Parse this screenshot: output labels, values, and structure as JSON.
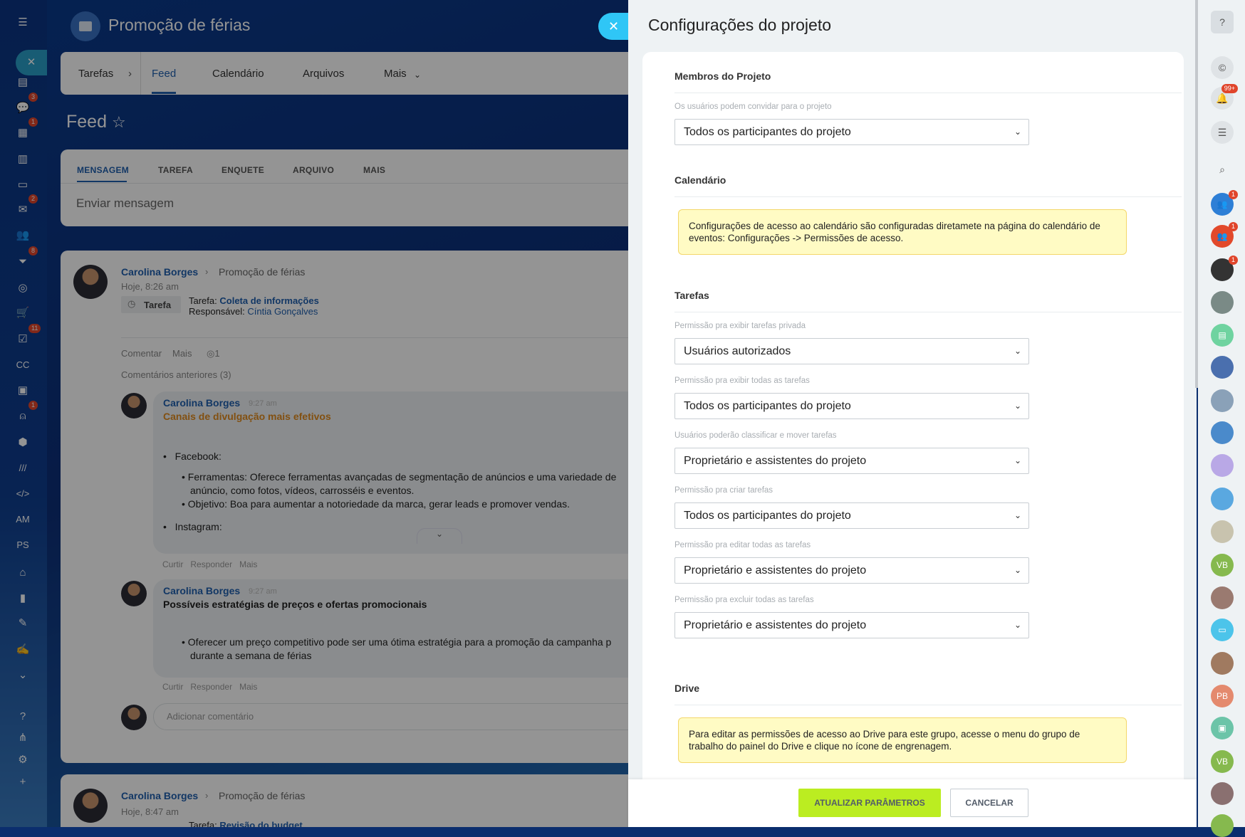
{
  "header": {
    "title": "Promoção de férias"
  },
  "tabs": [
    {
      "label": "Tarefas"
    },
    {
      "label": "Feed"
    },
    {
      "label": "Calendário"
    },
    {
      "label": "Arquivos"
    },
    {
      "label": "Mais"
    }
  ],
  "feed": {
    "title": "Feed"
  },
  "composer": {
    "tabs": [
      "MENSAGEM",
      "TAREFA",
      "ENQUETE",
      "ARQUIVO",
      "MAIS"
    ],
    "placeholder": "Enviar mensagem"
  },
  "post": {
    "author": "Carolina Borges",
    "group": "Promoção de férias",
    "time": "Hoje, 8:26 am",
    "type": "Tarefa",
    "task_label": "Tarefa:",
    "task": "Coleta de informações",
    "resp_label": "Responsável:",
    "resp": "Cíntia Gonçalves",
    "actions": [
      "Comentar",
      "Mais"
    ],
    "views": "1",
    "prev_comments": "Comentários anteriores (3)"
  },
  "comments": [
    {
      "author": "Carolina Borges",
      "time": "9:27 am",
      "title": "Canais de divulgação mais efetivos",
      "l1": "Facebook:",
      "l2": "Ferramentas: Oferece ferramentas avançadas de segmentação de anúncios e uma variedade de",
      "l2b": "anúncio, como fotos, vídeos, carrosséis e eventos.",
      "l3": "Objetivo: Boa para aumentar a notoriedade da marca, gerar leads e promover vendas.",
      "l4": "Instagram:"
    },
    {
      "author": "Carolina Borges",
      "time": "9:27 am",
      "title": "Possíveis estratégias de preços e ofertas promocionais",
      "l1": "Oferecer um preço competitivo pode ser uma ótima estratégia para a promoção da campanha p",
      "l1b": "durante a semana de férias"
    }
  ],
  "comment_actions": [
    "Curtir",
    "Responder",
    "Mais"
  ],
  "add_comment": "Adicionar comentário",
  "post2": {
    "author": "Carolina Borges",
    "group": "Promoção de férias",
    "time": "Hoje, 8:47 am",
    "task_label": "Tarefa:",
    "task": "Revisão do budget"
  },
  "left_sidebar": [
    {
      "icon": "menu-icon",
      "g": "☰"
    },
    {
      "icon": "close-icon",
      "g": "✕"
    },
    {
      "icon": "news-icon",
      "g": "▤"
    },
    {
      "icon": "chat-icon",
      "g": "💬",
      "badge": "3"
    },
    {
      "icon": "calendar-icon",
      "g": "▦",
      "badge": "1"
    },
    {
      "icon": "document-icon",
      "g": "▥"
    },
    {
      "icon": "drive-icon",
      "g": "▭"
    },
    {
      "icon": "mail-icon",
      "g": "✉",
      "badge": "2"
    },
    {
      "icon": "groups-icon",
      "g": "👥"
    },
    {
      "icon": "funnel-icon",
      "g": "⏷",
      "badge": "8"
    },
    {
      "icon": "target-icon",
      "g": "◎"
    },
    {
      "icon": "cart-icon",
      "g": "🛒"
    },
    {
      "icon": "tasks-icon",
      "g": "☑",
      "badge": "11"
    },
    {
      "icon": "cc-icon",
      "g": "CC"
    },
    {
      "icon": "contact-icon",
      "g": "▣"
    },
    {
      "icon": "robot-icon",
      "g": "⍝",
      "badge": "1"
    },
    {
      "icon": "box-icon",
      "g": "⬢"
    },
    {
      "icon": "brand-icon",
      "g": "///"
    },
    {
      "icon": "code-icon",
      "g": "</>"
    },
    {
      "icon": "am-icon",
      "g": "AM"
    },
    {
      "icon": "ps-icon",
      "g": "PS"
    },
    {
      "icon": "building-icon",
      "g": "⌂"
    },
    {
      "icon": "chart-icon",
      "g": "▮"
    },
    {
      "icon": "edit-doc-icon",
      "g": "✎"
    },
    {
      "icon": "signature-icon",
      "g": "✍"
    },
    {
      "icon": "more-icon",
      "g": "⌄"
    },
    {
      "icon": "help-icon",
      "g": "?"
    },
    {
      "icon": "sitemap-icon",
      "g": "⋔"
    },
    {
      "icon": "gear-icon",
      "g": "⚙"
    },
    {
      "icon": "plus-icon",
      "g": "+"
    }
  ],
  "panel": {
    "title": "Configurações do projeto",
    "sections": {
      "members": "Membros do Projeto",
      "calendar": "Calendário",
      "tasks": "Tarefas",
      "drive": "Drive"
    },
    "fields": [
      {
        "label": "Os usuários podem convidar para o projeto",
        "value": "Todos os participantes do projeto"
      },
      {
        "label": "Permissão pra exibir tarefas privada",
        "value": "Usuários autorizados"
      },
      {
        "label": "Permissão pra exibir todas as tarefas",
        "value": "Todos os participantes do projeto"
      },
      {
        "label": "Usuários poderão classificar e mover tarefas",
        "value": "Proprietário e assistentes do projeto"
      },
      {
        "label": "Permissão pra criar tarefas",
        "value": "Todos os participantes do projeto"
      },
      {
        "label": "Permissão pra editar todas as tarefas",
        "value": "Proprietário e assistentes do projeto"
      },
      {
        "label": "Permissão pra excluir todas as tarefas",
        "value": "Proprietário e assistentes do projeto"
      }
    ],
    "calendar_note": "Configurações de acesso ao calendário são configuradas diretamete na página do calendário de eventos: Configurações -> Permissões de acesso.",
    "drive_note": "Para editar as permissões de acesso ao Drive para este grupo, acesse o menu do grupo de trabalho do painel do Drive e clique no ícone de engrenagem.",
    "save": "ATUALIZAR PARÂMETROS",
    "cancel": "CANCELAR"
  },
  "right_sidebar": [
    {
      "icon": "help-icon",
      "g": "?",
      "c": "#d9dee2"
    },
    {
      "icon": "copilot-icon",
      "g": "©",
      "c": "#dfe3e6"
    },
    {
      "icon": "bell-icon",
      "g": "🔔",
      "c": "#dfe3e6",
      "badge": "99+"
    },
    {
      "icon": "messages-icon",
      "g": "☰",
      "c": "#dfe3e6"
    },
    {
      "icon": "search-icon",
      "g": "⌕",
      "c": "transparent"
    },
    {
      "icon": "group-chat-icon",
      "g": "👥",
      "c": "#2d7fd6",
      "badge": "1"
    },
    {
      "icon": "group-chat-icon",
      "g": "👥",
      "c": "#e2492b",
      "badge": "1"
    },
    {
      "icon": "avatar",
      "g": "",
      "c": "#333",
      "badge": "1"
    },
    {
      "icon": "avatar",
      "g": "",
      "c": "#7a8a86"
    },
    {
      "icon": "avatar",
      "g": "▤",
      "c": "#6fd3a0"
    },
    {
      "icon": "avatar",
      "g": "",
      "c": "#4a6fae"
    },
    {
      "icon": "avatar",
      "g": "",
      "c": "#8aa1b8"
    },
    {
      "icon": "avatar",
      "g": "",
      "c": "#4a8acb"
    },
    {
      "icon": "avatar",
      "g": "",
      "c": "#b9a8e6"
    },
    {
      "icon": "avatar",
      "g": "",
      "c": "#5aa8e0"
    },
    {
      "icon": "avatar",
      "g": "",
      "c": "#c8c3ae"
    },
    {
      "icon": "avatar",
      "g": "VB",
      "c": "#86b94e"
    },
    {
      "icon": "avatar",
      "g": "",
      "c": "#9a7a70"
    },
    {
      "icon": "avatar",
      "g": "▭",
      "c": "#4cc4ea"
    },
    {
      "icon": "avatar",
      "g": "",
      "c": "#a07a60"
    },
    {
      "icon": "avatar",
      "g": "PB",
      "c": "#e48a6e"
    },
    {
      "icon": "avatar",
      "g": "▣",
      "c": "#6cc4a8"
    },
    {
      "icon": "avatar",
      "g": "VB",
      "c": "#86b94e"
    },
    {
      "icon": "avatar",
      "g": "",
      "c": "#8a7070"
    },
    {
      "icon": "avatar",
      "g": "",
      "c": "#86b94e"
    }
  ]
}
